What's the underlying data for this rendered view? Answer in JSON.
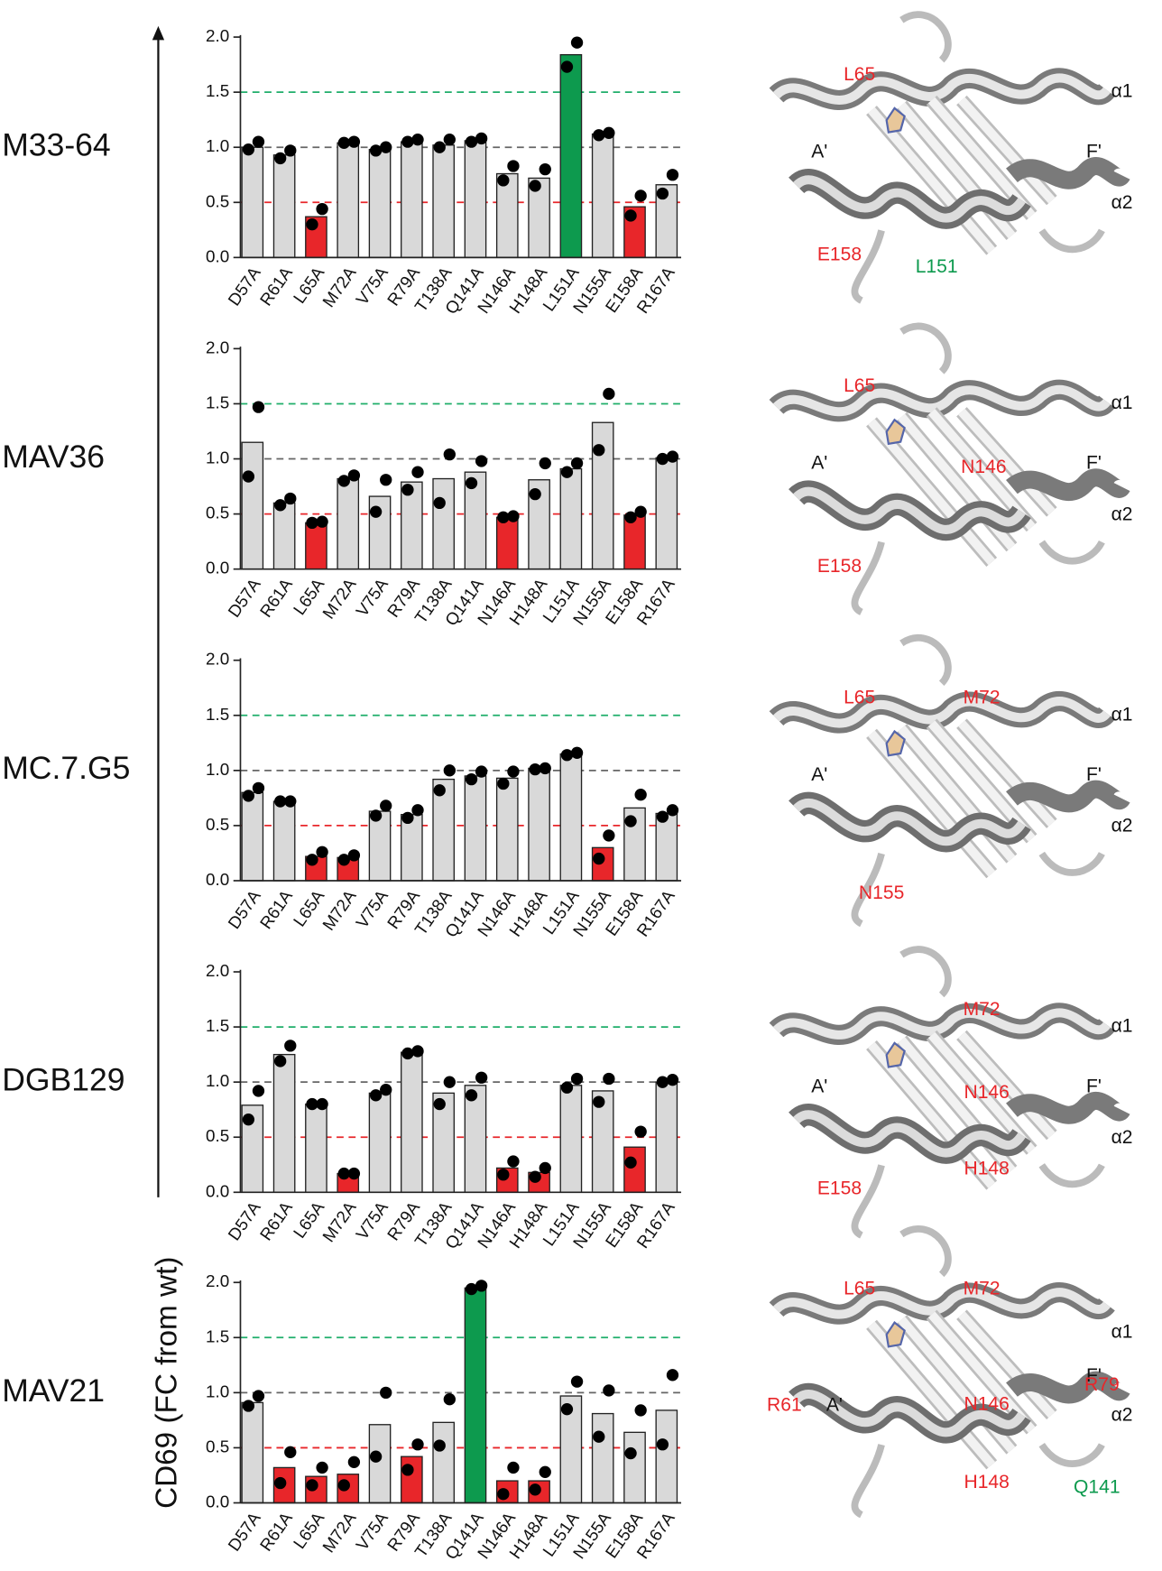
{
  "y_axis_label": "CD69 (FC from wt)",
  "chart_data": [
    {
      "type": "bar",
      "title": "M33-64",
      "categories": [
        "D57A",
        "R61A",
        "L65A",
        "M72A",
        "V75A",
        "R79A",
        "T138A",
        "Q141A",
        "N146A",
        "H148A",
        "L151A",
        "N155A",
        "E158A",
        "R167A"
      ],
      "values": [
        1.0,
        0.93,
        0.37,
        1.04,
        0.98,
        1.05,
        1.02,
        1.06,
        0.76,
        0.72,
        1.84,
        1.12,
        0.46,
        0.66
      ],
      "bar_colors": [
        "#d9d9d9",
        "#d9d9d9",
        "#e8262a",
        "#d9d9d9",
        "#d9d9d9",
        "#d9d9d9",
        "#d9d9d9",
        "#d9d9d9",
        "#d9d9d9",
        "#d9d9d9",
        "#0d9a4e",
        "#d9d9d9",
        "#e8262a",
        "#d9d9d9"
      ],
      "points": [
        [
          0.98,
          1.05
        ],
        [
          0.9,
          0.97
        ],
        [
          0.3,
          0.44
        ],
        [
          1.04,
          1.05
        ],
        [
          0.97,
          1.0
        ],
        [
          1.05,
          1.07
        ],
        [
          1.0,
          1.07
        ],
        [
          1.05,
          1.08
        ],
        [
          0.7,
          0.83
        ],
        [
          0.65,
          0.8
        ],
        [
          1.73,
          1.95
        ],
        [
          1.11,
          1.13
        ],
        [
          0.38,
          0.56
        ],
        [
          0.58,
          0.75
        ]
      ],
      "ylim": [
        0,
        2
      ],
      "yticks": [
        {
          "value": 0,
          "label": "0.0"
        },
        {
          "value": 0.5,
          "label": "0.5"
        },
        {
          "value": 1,
          "label": "1.0"
        },
        {
          "value": 1.5,
          "label": "1.5"
        },
        {
          "value": 2,
          "label": "2.0"
        }
      ],
      "reference_lines": [
        {
          "value": 0.5,
          "color": "#e8262a"
        },
        {
          "value": 1,
          "color": "#666666"
        },
        {
          "value": 1.5,
          "color": "#1fae6a"
        }
      ],
      "structure_labels": [
        {
          "text": "α1",
          "color": "#111111"
        },
        {
          "text": "A'",
          "color": "#111111"
        },
        {
          "text": "F'",
          "color": "#111111"
        },
        {
          "text": "α2",
          "color": "#111111"
        },
        {
          "text": "L65",
          "color": "#e8262a"
        },
        {
          "text": "E158",
          "color": "#e8262a"
        },
        {
          "text": "L151",
          "color": "#0d9a4e"
        }
      ]
    },
    {
      "type": "bar",
      "title": "MAV36",
      "categories": [
        "D57A",
        "R61A",
        "L65A",
        "M72A",
        "V75A",
        "R79A",
        "T138A",
        "Q141A",
        "N146A",
        "H148A",
        "L151A",
        "N155A",
        "E158A",
        "R167A"
      ],
      "values": [
        1.15,
        0.6,
        0.42,
        0.82,
        0.66,
        0.79,
        0.82,
        0.88,
        0.47,
        0.81,
        0.91,
        1.33,
        0.49,
        1.01
      ],
      "bar_colors": [
        "#d9d9d9",
        "#d9d9d9",
        "#e8262a",
        "#d9d9d9",
        "#d9d9d9",
        "#d9d9d9",
        "#d9d9d9",
        "#d9d9d9",
        "#e8262a",
        "#d9d9d9",
        "#d9d9d9",
        "#d9d9d9",
        "#e8262a",
        "#d9d9d9"
      ],
      "points": [
        [
          0.84,
          1.47
        ],
        [
          0.58,
          0.64
        ],
        [
          0.42,
          0.43
        ],
        [
          0.8,
          0.85
        ],
        [
          0.52,
          0.81
        ],
        [
          0.72,
          0.88
        ],
        [
          0.6,
          1.04
        ],
        [
          0.78,
          0.98
        ],
        [
          0.47,
          0.48
        ],
        [
          0.68,
          0.96
        ],
        [
          0.88,
          0.96
        ],
        [
          1.08,
          1.59
        ],
        [
          0.47,
          0.52
        ],
        [
          1.0,
          1.02
        ]
      ],
      "ylim": [
        0,
        2
      ],
      "yticks": [
        {
          "value": 0,
          "label": "0.0"
        },
        {
          "value": 0.5,
          "label": "0.5"
        },
        {
          "value": 1,
          "label": "1.0"
        },
        {
          "value": 1.5,
          "label": "1.5"
        },
        {
          "value": 2,
          "label": "2.0"
        }
      ],
      "reference_lines": [
        {
          "value": 0.5,
          "color": "#e8262a"
        },
        {
          "value": 1,
          "color": "#666666"
        },
        {
          "value": 1.5,
          "color": "#1fae6a"
        }
      ],
      "structure_labels": [
        {
          "text": "α1",
          "color": "#111111"
        },
        {
          "text": "A'",
          "color": "#111111"
        },
        {
          "text": "F'",
          "color": "#111111"
        },
        {
          "text": "α2",
          "color": "#111111"
        },
        {
          "text": "L65",
          "color": "#e8262a"
        },
        {
          "text": "N146",
          "color": "#e8262a"
        },
        {
          "text": "E158",
          "color": "#e8262a"
        }
      ]
    },
    {
      "type": "bar",
      "title": "MC.7.G5",
      "categories": [
        "D57A",
        "R61A",
        "L65A",
        "M72A",
        "V75A",
        "R79A",
        "T138A",
        "Q141A",
        "N146A",
        "H148A",
        "L151A",
        "N155A",
        "E158A",
        "R167A"
      ],
      "values": [
        0.8,
        0.72,
        0.22,
        0.21,
        0.63,
        0.6,
        0.92,
        0.95,
        0.93,
        1.02,
        1.15,
        0.3,
        0.66,
        0.61
      ],
      "bar_colors": [
        "#d9d9d9",
        "#d9d9d9",
        "#e8262a",
        "#e8262a",
        "#d9d9d9",
        "#d9d9d9",
        "#d9d9d9",
        "#d9d9d9",
        "#d9d9d9",
        "#d9d9d9",
        "#d9d9d9",
        "#e8262a",
        "#d9d9d9",
        "#d9d9d9"
      ],
      "points": [
        [
          0.77,
          0.84
        ],
        [
          0.72,
          0.72
        ],
        [
          0.19,
          0.26
        ],
        [
          0.19,
          0.23
        ],
        [
          0.59,
          0.68
        ],
        [
          0.57,
          0.64
        ],
        [
          0.82,
          1.0
        ],
        [
          0.92,
          0.99
        ],
        [
          0.88,
          0.99
        ],
        [
          1.01,
          1.02
        ],
        [
          1.14,
          1.16
        ],
        [
          0.2,
          0.41
        ],
        [
          0.54,
          0.78
        ],
        [
          0.58,
          0.64
        ]
      ],
      "ylim": [
        0,
        2
      ],
      "yticks": [
        {
          "value": 0,
          "label": "0.0"
        },
        {
          "value": 0.5,
          "label": "0.5"
        },
        {
          "value": 1,
          "label": "1.0"
        },
        {
          "value": 1.5,
          "label": "1.5"
        },
        {
          "value": 2,
          "label": "2.0"
        }
      ],
      "reference_lines": [
        {
          "value": 0.5,
          "color": "#e8262a"
        },
        {
          "value": 1,
          "color": "#666666"
        },
        {
          "value": 1.5,
          "color": "#1fae6a"
        }
      ],
      "structure_labels": [
        {
          "text": "α1",
          "color": "#111111"
        },
        {
          "text": "A'",
          "color": "#111111"
        },
        {
          "text": "F'",
          "color": "#111111"
        },
        {
          "text": "α2",
          "color": "#111111"
        },
        {
          "text": "L65",
          "color": "#e8262a"
        },
        {
          "text": "M72",
          "color": "#e8262a"
        },
        {
          "text": "N155",
          "color": "#e8262a"
        }
      ]
    },
    {
      "type": "bar",
      "title": "DGB129",
      "categories": [
        "D57A",
        "R61A",
        "L65A",
        "M72A",
        "V75A",
        "R79A",
        "T138A",
        "Q141A",
        "N146A",
        "H148A",
        "L151A",
        "N155A",
        "E158A",
        "R167A"
      ],
      "values": [
        0.79,
        1.25,
        0.8,
        0.17,
        0.9,
        1.27,
        0.9,
        0.97,
        0.22,
        0.18,
        0.97,
        0.92,
        0.41,
        1.0
      ],
      "bar_colors": [
        "#d9d9d9",
        "#d9d9d9",
        "#d9d9d9",
        "#e8262a",
        "#d9d9d9",
        "#d9d9d9",
        "#d9d9d9",
        "#d9d9d9",
        "#e8262a",
        "#e8262a",
        "#d9d9d9",
        "#d9d9d9",
        "#e8262a",
        "#d9d9d9"
      ],
      "points": [
        [
          0.66,
          0.92
        ],
        [
          1.19,
          1.33
        ],
        [
          0.8,
          0.8
        ],
        [
          0.17,
          0.17
        ],
        [
          0.88,
          0.93
        ],
        [
          1.26,
          1.28
        ],
        [
          0.8,
          1.0
        ],
        [
          0.88,
          1.04
        ],
        [
          0.16,
          0.28
        ],
        [
          0.14,
          0.22
        ],
        [
          0.95,
          1.03
        ],
        [
          0.82,
          1.03
        ],
        [
          0.27,
          0.55
        ],
        [
          1.0,
          1.02
        ]
      ],
      "ylim": [
        0,
        2
      ],
      "yticks": [
        {
          "value": 0,
          "label": "0.0"
        },
        {
          "value": 0.5,
          "label": "0.5"
        },
        {
          "value": 1,
          "label": "1.0"
        },
        {
          "value": 1.5,
          "label": "1.5"
        },
        {
          "value": 2,
          "label": "2.0"
        }
      ],
      "reference_lines": [
        {
          "value": 0.5,
          "color": "#e8262a"
        },
        {
          "value": 1,
          "color": "#666666"
        },
        {
          "value": 1.5,
          "color": "#1fae6a"
        }
      ],
      "structure_labels": [
        {
          "text": "α1",
          "color": "#111111"
        },
        {
          "text": "A'",
          "color": "#111111"
        },
        {
          "text": "F'",
          "color": "#111111"
        },
        {
          "text": "α2",
          "color": "#111111"
        },
        {
          "text": "M72",
          "color": "#e8262a"
        },
        {
          "text": "N146",
          "color": "#e8262a"
        },
        {
          "text": "H148",
          "color": "#e8262a"
        },
        {
          "text": "E158",
          "color": "#e8262a"
        }
      ]
    },
    {
      "type": "bar",
      "title": "MAV21",
      "categories": [
        "D57A",
        "R61A",
        "L65A",
        "M72A",
        "V75A",
        "R79A",
        "T138A",
        "Q141A",
        "N146A",
        "H148A",
        "L151A",
        "N155A",
        "E158A",
        "R167A"
      ],
      "values": [
        0.91,
        0.32,
        0.24,
        0.26,
        0.71,
        0.42,
        0.73,
        1.95,
        0.2,
        0.2,
        0.97,
        0.81,
        0.64,
        0.84
      ],
      "bar_colors": [
        "#d9d9d9",
        "#e8262a",
        "#e8262a",
        "#e8262a",
        "#d9d9d9",
        "#e8262a",
        "#d9d9d9",
        "#0d9a4e",
        "#e8262a",
        "#e8262a",
        "#d9d9d9",
        "#d9d9d9",
        "#d9d9d9",
        "#d9d9d9"
      ],
      "points": [
        [
          0.88,
          0.97
        ],
        [
          0.18,
          0.46
        ],
        [
          0.16,
          0.32
        ],
        [
          0.16,
          0.37
        ],
        [
          0.42,
          1.0
        ],
        [
          0.3,
          0.53
        ],
        [
          0.52,
          0.94
        ],
        [
          1.94,
          1.97
        ],
        [
          0.08,
          0.32
        ],
        [
          0.12,
          0.28
        ],
        [
          0.85,
          1.1
        ],
        [
          0.6,
          1.02
        ],
        [
          0.45,
          0.84
        ],
        [
          0.53,
          1.16
        ]
      ],
      "ylim": [
        0,
        2
      ],
      "yticks": [
        {
          "value": 0,
          "label": "0.0"
        },
        {
          "value": 0.5,
          "label": "0.5"
        },
        {
          "value": 1,
          "label": "1.0"
        },
        {
          "value": 1.5,
          "label": "1.5"
        },
        {
          "value": 2,
          "label": "2.0"
        }
      ],
      "reference_lines": [
        {
          "value": 0.5,
          "color": "#e8262a"
        },
        {
          "value": 1,
          "color": "#666666"
        },
        {
          "value": 1.5,
          "color": "#1fae6a"
        }
      ],
      "structure_labels": [
        {
          "text": "α1",
          "color": "#111111"
        },
        {
          "text": "A'",
          "color": "#111111"
        },
        {
          "text": "F'",
          "color": "#111111"
        },
        {
          "text": "α2",
          "color": "#111111"
        },
        {
          "text": "L65",
          "color": "#e8262a"
        },
        {
          "text": "M72",
          "color": "#e8262a"
        },
        {
          "text": "R79",
          "color": "#e8262a"
        },
        {
          "text": "R61",
          "color": "#e8262a"
        },
        {
          "text": "N146",
          "color": "#e8262a"
        },
        {
          "text": "H148",
          "color": "#e8262a"
        },
        {
          "text": "Q141",
          "color": "#0d9a4e"
        }
      ]
    }
  ]
}
